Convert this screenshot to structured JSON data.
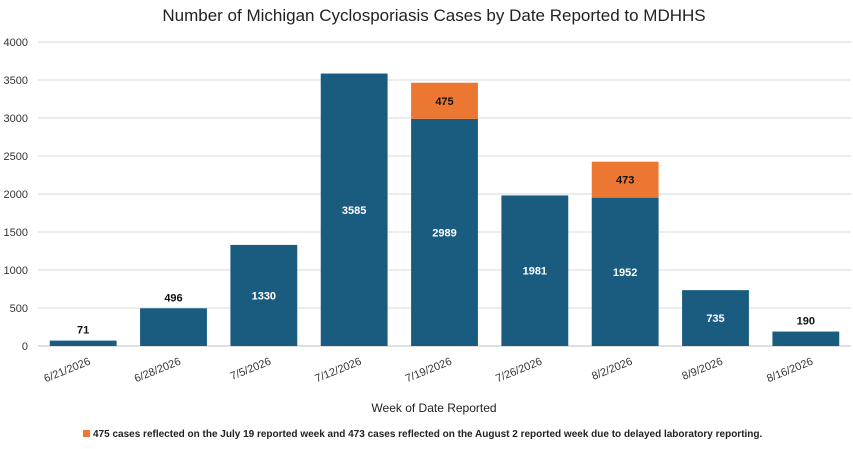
{
  "chart_data": {
    "type": "bar",
    "stacked": true,
    "title": "Number of Michigan Cyclosporiasis Cases by Date Reported to MDHHS",
    "xlabel": "Week of Date Reported",
    "ylabel": "",
    "ylim": [
      0,
      4000
    ],
    "yticks": [
      "0",
      "500",
      "1000",
      "1500",
      "2000",
      "2500",
      "3000",
      "3500",
      "4000"
    ],
    "grid": true,
    "categories": [
      "6/21/2026",
      "6/28/2026",
      "7/5/2026",
      "7/12/2026",
      "7/19/2026",
      "7/26/2026",
      "8/2/2026",
      "8/9/2026",
      "8/16/2026"
    ],
    "series": [
      {
        "name": "",
        "color": "#1a5c80",
        "values": [
          71,
          496,
          1330,
          3585,
          2989,
          1981,
          1952,
          735,
          190
        ],
        "labels": [
          "71",
          "496",
          "1330",
          "3585",
          "2989",
          "1981",
          "1952",
          "735",
          "190"
        ]
      },
      {
        "name": "",
        "color": "#ec7733",
        "values": [
          0,
          0,
          0,
          0,
          475,
          0,
          473,
          0,
          0
        ],
        "labels": [
          "",
          "",
          "",
          "",
          "475",
          "",
          "473",
          "",
          ""
        ]
      }
    ],
    "legend": {
      "placement": "bottom-left",
      "color": "#ec7733",
      "text": "475 cases reflected on the July 19 reported week and 473 cases reflected on the August 2 reported week due to delayed laboratory reporting."
    }
  }
}
